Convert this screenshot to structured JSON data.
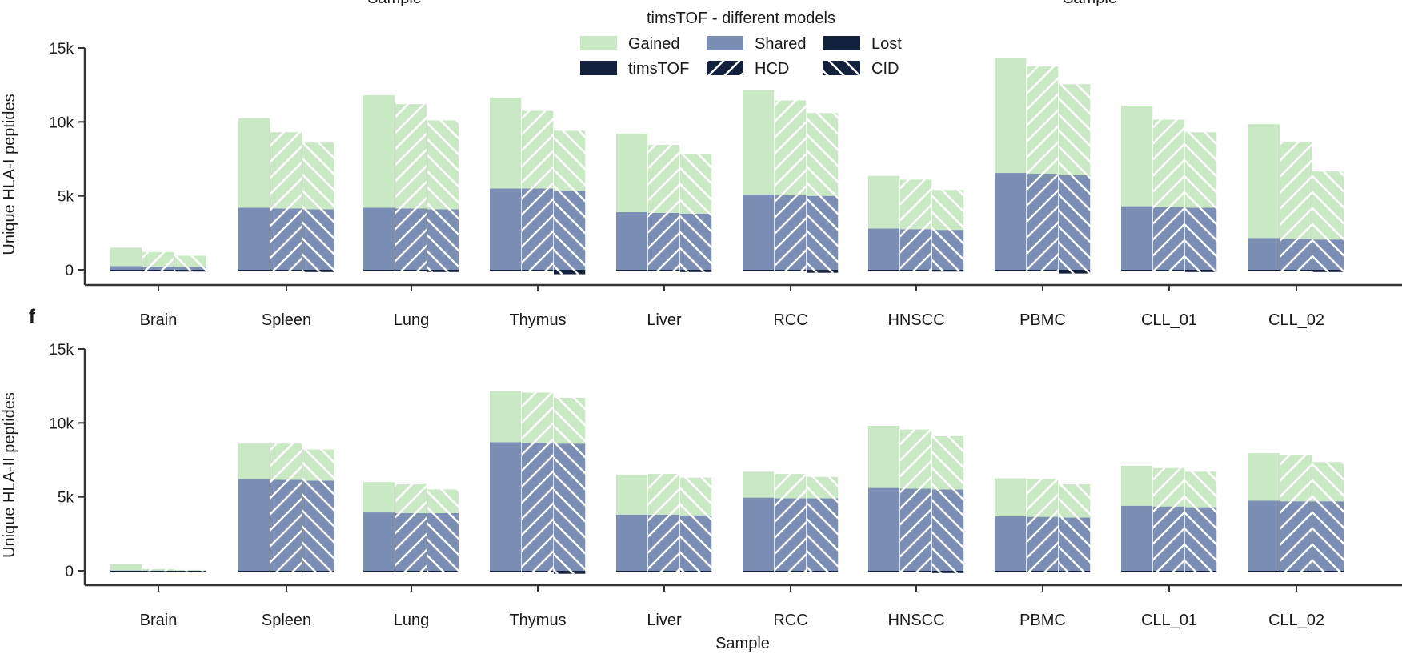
{
  "header": {
    "cut_left_label": "Sample",
    "cut_right_label": "Sample",
    "figure_title": "timsTOF - different models"
  },
  "legend": {
    "items": [
      {
        "key": "gained",
        "label": "Gained"
      },
      {
        "key": "shared",
        "label": "Shared"
      },
      {
        "key": "lost",
        "label": "Lost"
      },
      {
        "key": "timstof",
        "label": "timsTOF"
      },
      {
        "key": "hcd",
        "label": "HCD"
      },
      {
        "key": "cid",
        "label": "CID"
      }
    ]
  },
  "colors": {
    "gained": "#c9e9c4",
    "shared": "#7b8fb4",
    "lost": "#14213d",
    "axis": "#333333",
    "hatch": "#ffffff"
  },
  "chart_data": [
    {
      "type": "bar",
      "stacked": true,
      "panel_label": "",
      "title": "timsTOF - different models",
      "xlabel": "",
      "ylabel": "Unique HLA-I peptides",
      "ylim": [
        -1500,
        16000
      ],
      "yticks": [
        0,
        5000,
        10000,
        15000
      ],
      "ytick_labels": [
        "0",
        "5k",
        "10k",
        "15k"
      ],
      "categories": [
        "Brain",
        "Spleen",
        "Lung",
        "Thymus",
        "Liver",
        "RCC",
        "HNSCC",
        "PBMC",
        "CLL_01",
        "CLL_02"
      ],
      "models": [
        "timsTOF",
        "HCD",
        "CID"
      ],
      "series": [
        {
          "name": "Shared",
          "model_values": {
            "timsTOF": [
              250,
              4200,
              4200,
              5500,
              3900,
              5100,
              2800,
              6550,
              4300,
              2150
            ],
            "HCD": [
              220,
              4150,
              4150,
              5500,
              3850,
              5050,
              2750,
              6500,
              4250,
              2100
            ],
            "CID": [
              200,
              4100,
              4100,
              5350,
              3800,
              5000,
              2700,
              6400,
              4200,
              2050
            ]
          }
        },
        {
          "name": "Gained",
          "model_values": {
            "timsTOF": [
              1250,
              6050,
              7600,
              6150,
              5300,
              7050,
              3550,
              7800,
              6800,
              7700
            ],
            "HCD": [
              980,
              5150,
              7050,
              5250,
              4600,
              6400,
              3350,
              7250,
              5900,
              6550
            ],
            "CID": [
              750,
              4500,
              6000,
              4050,
              4050,
              5600,
              2700,
              6150,
              5100,
              4600
            ]
          }
        },
        {
          "name": "Lost",
          "model_values": {
            "timsTOF": [
              -100,
              -60,
              -60,
              -60,
              -60,
              -60,
              -60,
              -60,
              -60,
              -60
            ],
            "HCD": [
              -100,
              -80,
              -80,
              -80,
              -80,
              -80,
              -80,
              -80,
              -80,
              -80
            ],
            "CID": [
              -120,
              -150,
              -150,
              -300,
              -150,
              -200,
              -120,
              -250,
              -150,
              -150
            ]
          }
        }
      ]
    },
    {
      "type": "bar",
      "stacked": true,
      "panel_label": "f",
      "title": "",
      "xlabel": "Sample",
      "ylabel": "Unique HLA-II peptides",
      "ylim": [
        -1500,
        16000
      ],
      "yticks": [
        0,
        5000,
        10000,
        15000
      ],
      "ytick_labels": [
        "0",
        "5k",
        "10k",
        "15k"
      ],
      "categories": [
        "Brain",
        "Spleen",
        "Lung",
        "Thymus",
        "Liver",
        "RCC",
        "HNSCC",
        "PBMC",
        "CLL_01",
        "CLL_02"
      ],
      "models": [
        "timsTOF",
        "HCD",
        "CID"
      ],
      "series": [
        {
          "name": "Shared",
          "model_values": {
            "timsTOF": [
              20,
              6200,
              3950,
              8700,
              3800,
              4950,
              5600,
              3700,
              4400,
              4750
            ],
            "HCD": [
              15,
              6150,
              3900,
              8650,
              3800,
              4900,
              5550,
              3650,
              4350,
              4700
            ],
            "CID": [
              10,
              6100,
              3900,
              8600,
              3750,
              4900,
              5500,
              3600,
              4300,
              4700
            ]
          }
        },
        {
          "name": "Gained",
          "model_values": {
            "timsTOF": [
              430,
              2400,
              2050,
              3450,
              2700,
              1750,
              4200,
              2550,
              2700,
              3200
            ],
            "HCD": [
              100,
              2450,
              1950,
              3400,
              2750,
              1650,
              4000,
              2550,
              2600,
              3150
            ],
            "CID": [
              50,
              2100,
              1600,
              3100,
              2550,
              1450,
              3600,
              2250,
              2400,
              2650
            ]
          }
        },
        {
          "name": "Lost",
          "model_values": {
            "timsTOF": [
              -10,
              -60,
              -60,
              -80,
              -60,
              -60,
              -70,
              -60,
              -60,
              -60
            ],
            "HCD": [
              -20,
              -80,
              -80,
              -100,
              -80,
              -80,
              -90,
              -80,
              -80,
              -80
            ],
            "CID": [
              -30,
              -100,
              -100,
              -200,
              -100,
              -100,
              -150,
              -100,
              -100,
              -100
            ]
          }
        }
      ]
    }
  ]
}
